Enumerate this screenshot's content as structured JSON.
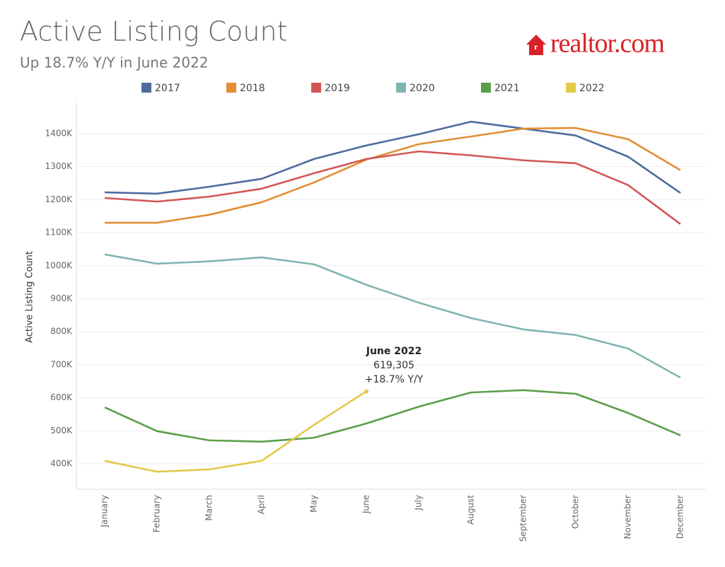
{
  "logo": "realtor.com",
  "chart_data": {
    "type": "line",
    "title": "Active Listing Count",
    "subtitle": "Up 18.7% Y/Y in June 2022",
    "y_label": "Active Listing Count",
    "categories": [
      "January",
      "February",
      "March",
      "April",
      "May",
      "June",
      "July",
      "August",
      "September",
      "October",
      "November",
      "December"
    ],
    "series": [
      {
        "name": "2017",
        "color": "#4e6b9f",
        "values": [
          1222000,
          1218000,
          1239000,
          1263000,
          1323000,
          1364000,
          1398000,
          1436000,
          1415000,
          1394000,
          1330000,
          1220000
        ]
      },
      {
        "name": "2018",
        "color": "#e28e33",
        "values": [
          1130000,
          1130000,
          1154000,
          1192000,
          1252000,
          1321000,
          1368000,
          1391000,
          1415000,
          1417000,
          1383000,
          1289000
        ]
      },
      {
        "name": "2019",
        "color": "#d35656",
        "values": [
          1205000,
          1194000,
          1209000,
          1233000,
          1280000,
          1323000,
          1346000,
          1334000,
          1319000,
          1310000,
          1244000,
          1126000
        ]
      },
      {
        "name": "2020",
        "color": "#7fb5b1",
        "values": [
          1034000,
          1006000,
          1013000,
          1025000,
          1004000,
          942000,
          888000,
          841000,
          807000,
          790000,
          749000,
          661000
        ]
      },
      {
        "name": "2021",
        "color": "#5a9f4a",
        "values": [
          571000,
          499000,
          471000,
          467000,
          479000,
          522000,
          573000,
          616000,
          623000,
          612000,
          554000,
          486000
        ]
      },
      {
        "name": "2022",
        "color": "#e4c84a",
        "values": [
          409000,
          376000,
          383000,
          409000,
          518000,
          619305,
          null,
          null,
          null,
          null,
          null,
          null
        ]
      }
    ],
    "annotation": {
      "title": "June 2022",
      "value_label": "619,305",
      "change": "+18.7% Y/Y"
    },
    "ylim": [
      323000,
      1494000
    ],
    "yticks": [
      {
        "value": 400000,
        "label": "400K"
      },
      {
        "value": 500000,
        "label": "500K"
      },
      {
        "value": 600000,
        "label": "600K"
      },
      {
        "value": 700000,
        "label": "700K"
      },
      {
        "value": 800000,
        "label": "800K"
      },
      {
        "value": 900000,
        "label": "900K"
      },
      {
        "value": 1000000,
        "label": "1000K"
      },
      {
        "value": 1100000,
        "label": "1100K"
      },
      {
        "value": 1200000,
        "label": "1200K"
      },
      {
        "value": 1300000,
        "label": "1300K"
      },
      {
        "value": 1400000,
        "label": "1400K"
      }
    ],
    "grid": true
  }
}
